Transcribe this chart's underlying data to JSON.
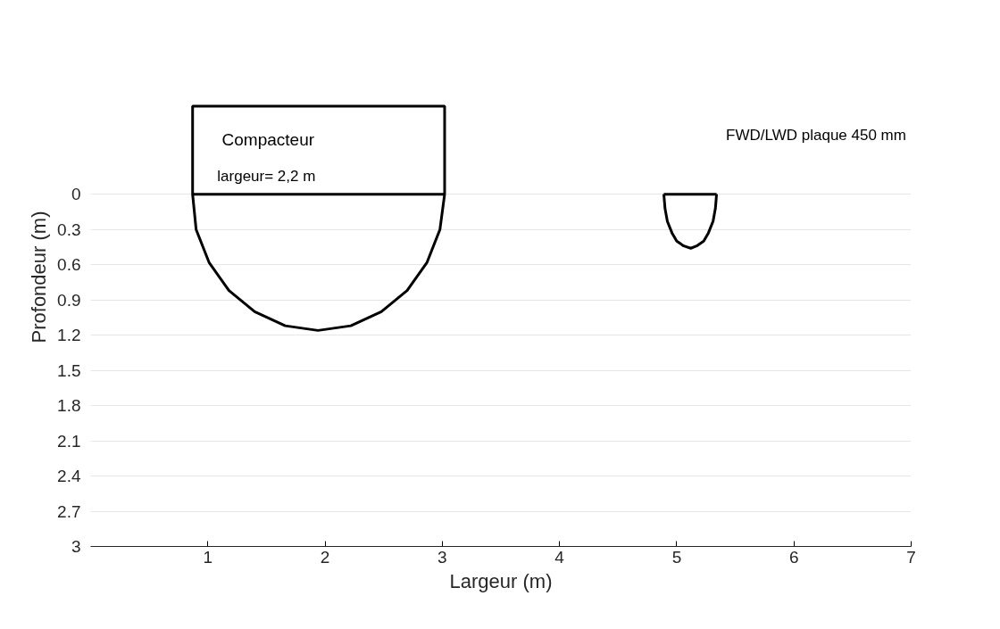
{
  "chart_data": {
    "type": "line",
    "xlabel": "Largeur (m)",
    "ylabel": "Profondeur (m)",
    "xlim": [
      0,
      7
    ],
    "xticks": [
      1,
      2,
      3,
      4,
      5,
      6,
      7
    ],
    "ylim": [
      3,
      0
    ],
    "yticks": [
      0,
      0.3,
      0.6,
      0.9,
      1.2,
      1.5,
      1.8,
      2.1,
      2.4,
      2.7,
      3
    ],
    "grid": "y",
    "marker": "none",
    "line_style": "solid",
    "series": [
      {
        "color": "#000000",
        "x": [
          3.02,
          2.98,
          2.87,
          2.7,
          2.48,
          2.22,
          1.94,
          1.66,
          1.4,
          1.18,
          1.01,
          0.9,
          0.87
        ],
        "values": [
          0,
          0.3,
          0.58,
          0.82,
          1.0,
          1.12,
          1.16,
          1.12,
          1.0,
          0.82,
          0.58,
          0.3,
          0
        ]
      },
      {
        "color": "#000000",
        "x": [
          5.34,
          5.33,
          5.31,
          5.27,
          5.23,
          5.17,
          5.12,
          5.06,
          5.0,
          4.96,
          4.92,
          4.9,
          4.89
        ],
        "values": [
          0,
          0.12,
          0.23,
          0.33,
          0.4,
          0.44,
          0.46,
          0.44,
          0.4,
          0.33,
          0.23,
          0.12,
          0
        ]
      },
      {
        "color": "#000000",
        "x": [
          4.89,
          5.34
        ],
        "values": [
          0,
          0
        ]
      }
    ],
    "annotations": [
      "Compacteur",
      "largeur= 2,2 m",
      "FWD/LWD plaque 450 mm"
    ]
  }
}
